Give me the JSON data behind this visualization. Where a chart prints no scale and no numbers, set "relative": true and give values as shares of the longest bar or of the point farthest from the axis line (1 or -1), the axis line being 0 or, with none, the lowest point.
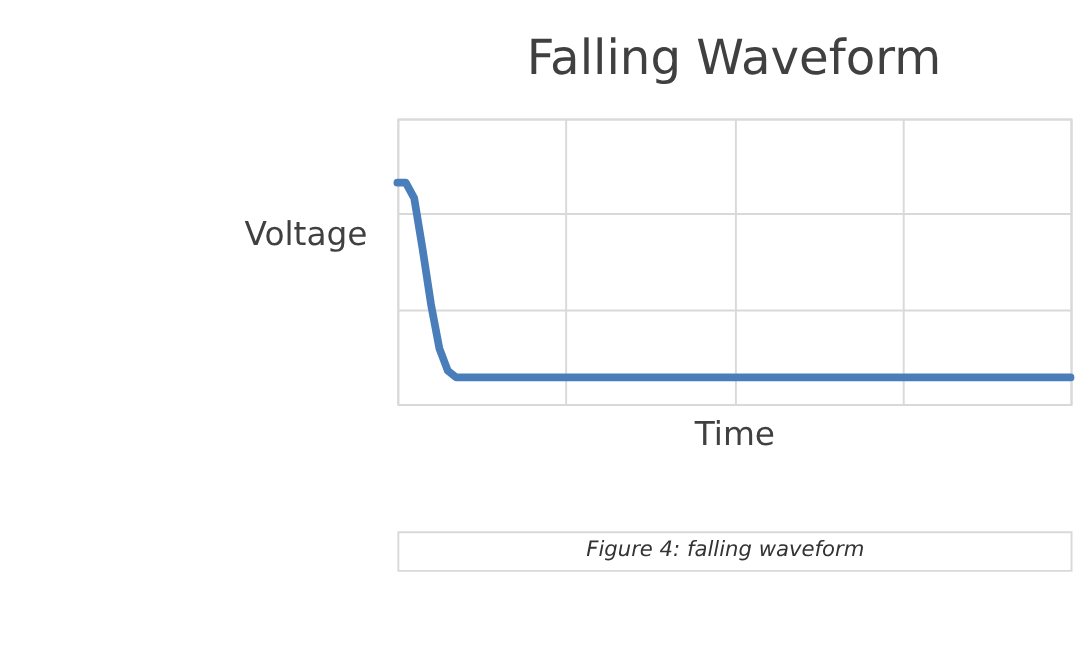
{
  "chart_data": {
    "type": "line",
    "title": "Falling Waveform",
    "xlabel": "Time",
    "ylabel": "Voltage",
    "annotations": [
      "Figure 4: falling waveform"
    ],
    "relative": true,
    "grid": true,
    "tick_labels": false,
    "marker": "none",
    "line_style": "solid",
    "categories": [
      null,
      null,
      null,
      null,
      null,
      null,
      null,
      null,
      null,
      null,
      null,
      null,
      null,
      null,
      null,
      null,
      null,
      null,
      null,
      null,
      null,
      null,
      null,
      null,
      null,
      null,
      null,
      null,
      null,
      null,
      null,
      null,
      null,
      null,
      null,
      null,
      null,
      null,
      null,
      null,
      null,
      null,
      null,
      null,
      null,
      null,
      null,
      null,
      null,
      null,
      null,
      null,
      null,
      null,
      null,
      null,
      null,
      null,
      null,
      null,
      null,
      null,
      null,
      null,
      null,
      null,
      null,
      null,
      null,
      null,
      null,
      null,
      null,
      null,
      null,
      null,
      null,
      null,
      null,
      null,
      null
    ],
    "series": [
      {
        "color": "#4a7ebb",
        "values": [
          1.0,
          1.0,
          0.93,
          0.7,
          0.45,
          0.25,
          0.15,
          0.12,
          0.12,
          0.12,
          0.12,
          0.12,
          0.12,
          0.12,
          0.12,
          0.12,
          0.12,
          0.12,
          0.12,
          0.12,
          0.12,
          0.12,
          0.12,
          0.12,
          0.12,
          0.12,
          0.12,
          0.12,
          0.12,
          0.12,
          0.12,
          0.12,
          0.12,
          0.12,
          0.12,
          0.12,
          0.12,
          0.12,
          0.12,
          0.12,
          0.12,
          0.12,
          0.12,
          0.12,
          0.12,
          0.12,
          0.12,
          0.12,
          0.12,
          0.12,
          0.12,
          0.12,
          0.12,
          0.12,
          0.12,
          0.12,
          0.12,
          0.12,
          0.12,
          0.12,
          0.12,
          0.12,
          0.12,
          0.12,
          0.12,
          0.12,
          0.12,
          0.12,
          0.12,
          0.12,
          0.12,
          0.12,
          0.12,
          0.12,
          0.12,
          0.12,
          0.12,
          0.12,
          0.12,
          0.12,
          0.12
        ]
      }
    ]
  }
}
